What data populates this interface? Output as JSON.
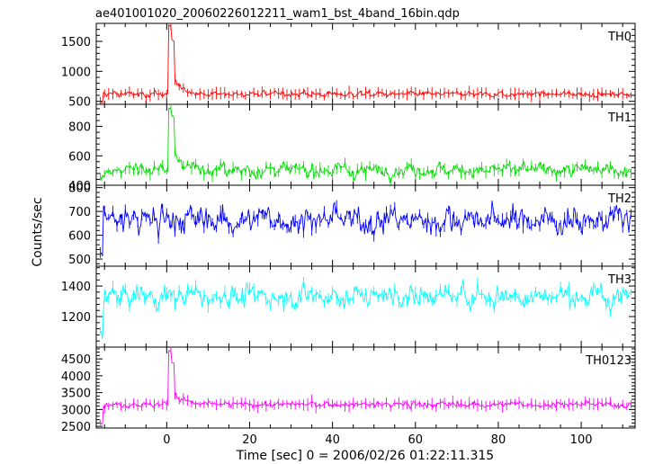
{
  "chart_data": {
    "type": "line",
    "title": "ae401001020_20060226012211_wam1_bst_4band_16bin.qdp",
    "xlabel": "Time [sec] 0 = 2006/02/26 01:22:11.315",
    "ylabel": "Counts/sec",
    "xlim": [
      -17,
      113
    ],
    "x_ticks": [
      0,
      20,
      40,
      60,
      80,
      100
    ],
    "grid": false,
    "panels": [
      {
        "name": "TH0",
        "color": "#ff0000",
        "ylim": [
          450,
          1800
        ],
        "y_ticks": [
          500,
          1000,
          1500
        ],
        "baseline": 620,
        "noise": 35,
        "start_value": 480,
        "burst_peak": 1760,
        "burst_plateau": 1500,
        "tail": 850
      },
      {
        "name": "TH1",
        "color": "#00dd00",
        "ylim": [
          400,
          950
        ],
        "y_ticks": [
          400,
          600,
          800
        ],
        "baseline": 505,
        "noise": 35,
        "start_value": 450,
        "burst_peak": 930,
        "burst_plateau": 860,
        "tail": 620
      },
      {
        "name": "TH2",
        "color": "#0000ff",
        "ylim": [
          470,
          810
        ],
        "y_ticks": [
          500,
          600,
          700,
          800
        ],
        "baseline": 665,
        "noise": 45,
        "start_value": 520,
        "burst_peak": null,
        "burst_plateau": null,
        "tail": null
      },
      {
        "name": "TH3",
        "color": "#00ffff",
        "ylim": [
          1000,
          1530
        ],
        "y_ticks": [
          1200,
          1400
        ],
        "baseline": 1335,
        "noise": 55,
        "start_value": 1080,
        "burst_peak": null,
        "burst_plateau": null,
        "tail": null
      },
      {
        "name": "TH0123",
        "color": "#ff00ff",
        "ylim": [
          2450,
          4850
        ],
        "y_ticks": [
          2500,
          3000,
          3500,
          4000,
          4500
        ],
        "baseline": 3150,
        "noise": 70,
        "start_value": 2600,
        "burst_peak": 4750,
        "burst_plateau": 4400,
        "tail": 3450
      }
    ]
  }
}
